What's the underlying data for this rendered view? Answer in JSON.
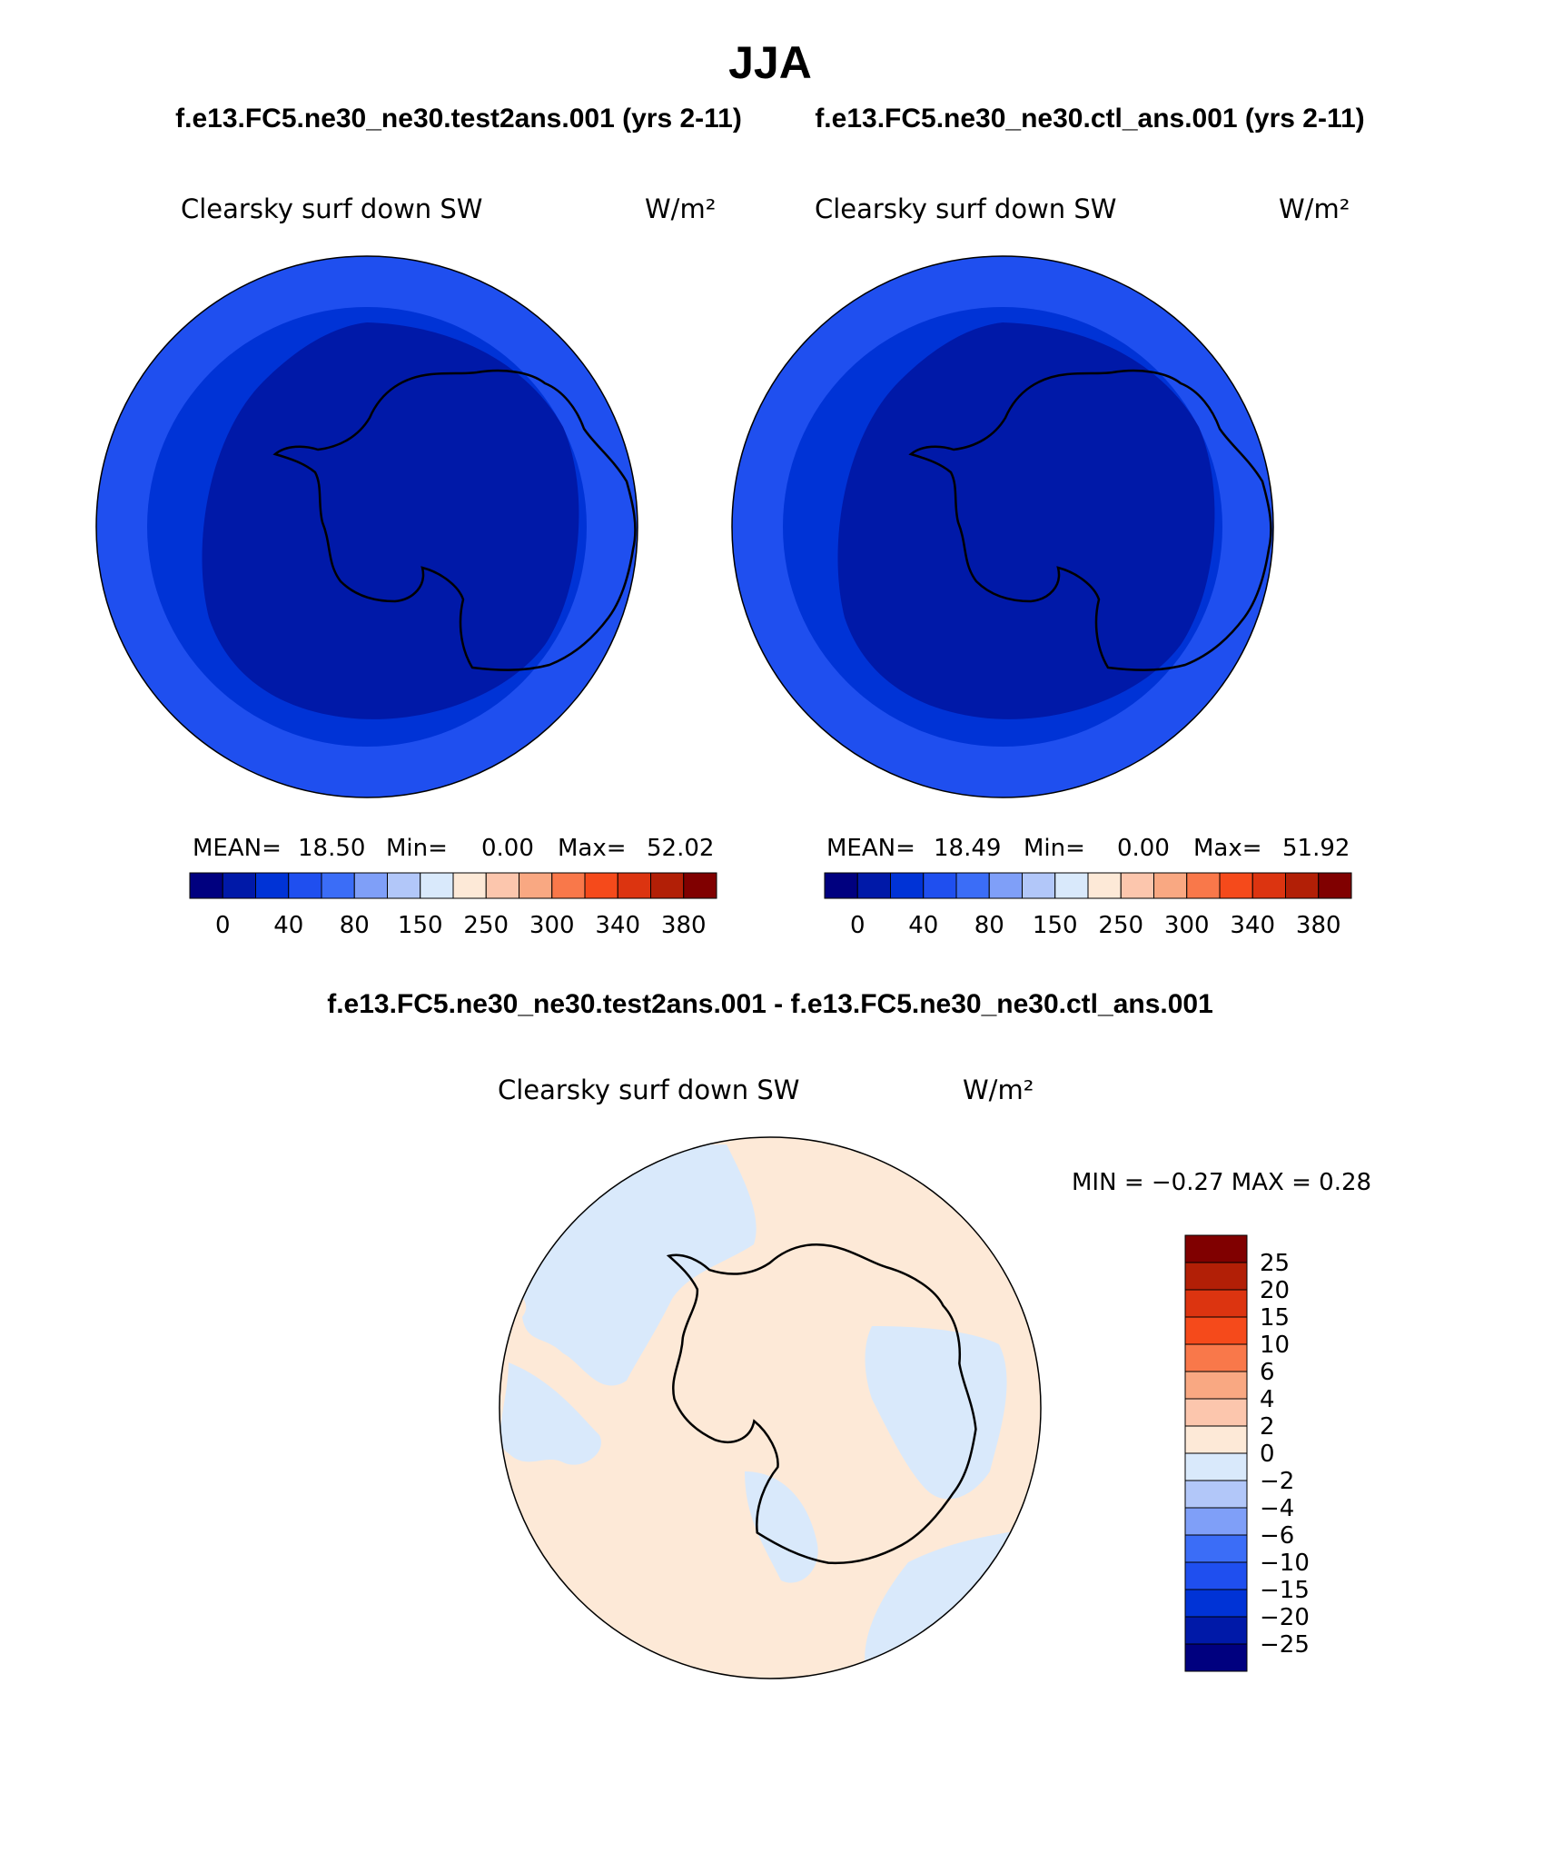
{
  "title": "JJA",
  "case_test": "f.e13.FC5.ne30_ne30.test2ans.001 (yrs 2-11)",
  "case_ctl": "f.e13.FC5.ne30_ne30.ctl_ans.001 (yrs 2-11)",
  "diff_title": "f.e13.FC5.ne30_ne30.test2ans.001 - f.e13.FC5.ne30_ne30.ctl_ans.001",
  "panels": {
    "test": {
      "variable": "Clearsky surf down SW",
      "units": "W/m²",
      "mean_label": "MEAN=",
      "mean": "18.50",
      "min_label": "Min=",
      "min": "0.00",
      "max_label": "Max=",
      "max": "52.02"
    },
    "ctl": {
      "variable": "Clearsky surf down SW",
      "units": "W/m²",
      "mean_label": "MEAN=",
      "mean": "18.49",
      "min_label": "Min=",
      "min": "0.00",
      "max_label": "Max=",
      "max": "51.92"
    },
    "diff": {
      "variable": "Clearsky surf down SW",
      "units": "W/m²",
      "minmax_text": "MIN =  −0.27 MAX =    0.28"
    }
  },
  "colorbar_field": {
    "colors": [
      "#00007f",
      "#0019a8",
      "#0033d6",
      "#1f4fef",
      "#3b6df7",
      "#7f9ff8",
      "#b2c7f9",
      "#d9e9fb",
      "#fde9d7",
      "#fcc6ad",
      "#f9a882",
      "#f9784a",
      "#f54a1b",
      "#dc3410",
      "#b21f06",
      "#800000"
    ],
    "labels": [
      "0",
      "40",
      "80",
      "150",
      "250",
      "300",
      "340",
      "380"
    ]
  },
  "colorbar_diff": {
    "colors": [
      "#00007f",
      "#0019a8",
      "#0033d6",
      "#1f4fef",
      "#3b6df7",
      "#7f9ff8",
      "#b2c7f9",
      "#d9e9fb",
      "#fde9d7",
      "#fcc6ad",
      "#f9a882",
      "#f9784a",
      "#f54a1b",
      "#dc3410",
      "#b21f06",
      "#800000"
    ],
    "labels": [
      "−25",
      "−20",
      "−15",
      "−10",
      "−6",
      "−4",
      "−2",
      "0",
      "2",
      "4",
      "6",
      "10",
      "15",
      "20",
      "25"
    ]
  },
  "map_colors": {
    "outer_ring": "#1f4fef",
    "inner_disk": "#0033d6",
    "innermost": "#0019a8",
    "diff_pos": "#fde9d7",
    "diff_neg": "#d9e9fb"
  }
}
